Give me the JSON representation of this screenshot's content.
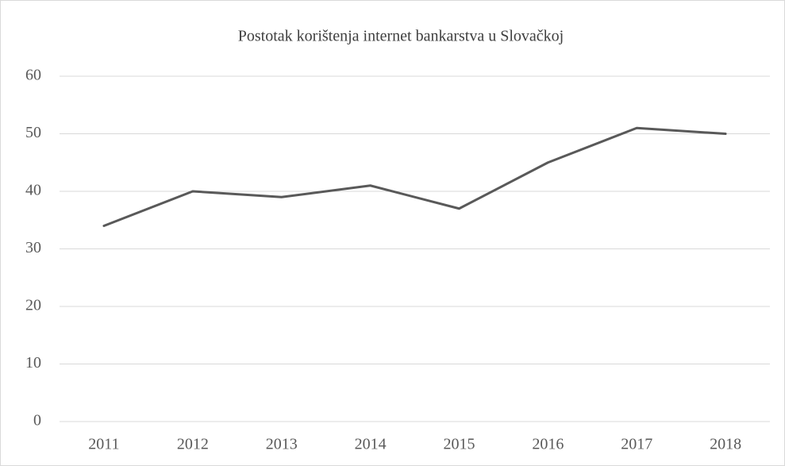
{
  "chart_data": {
    "type": "line",
    "title": "Postotak korištenja internet bankarstva u Slovačkoj",
    "categories": [
      "2011",
      "2012",
      "2013",
      "2014",
      "2015",
      "2016",
      "2017",
      "2018"
    ],
    "values": [
      34,
      40,
      39,
      41,
      37,
      45,
      51,
      50
    ],
    "color": "#595959",
    "ylim": [
      0,
      60
    ],
    "yticks": [
      0,
      10,
      20,
      30,
      40,
      50,
      60
    ],
    "grid": true
  }
}
